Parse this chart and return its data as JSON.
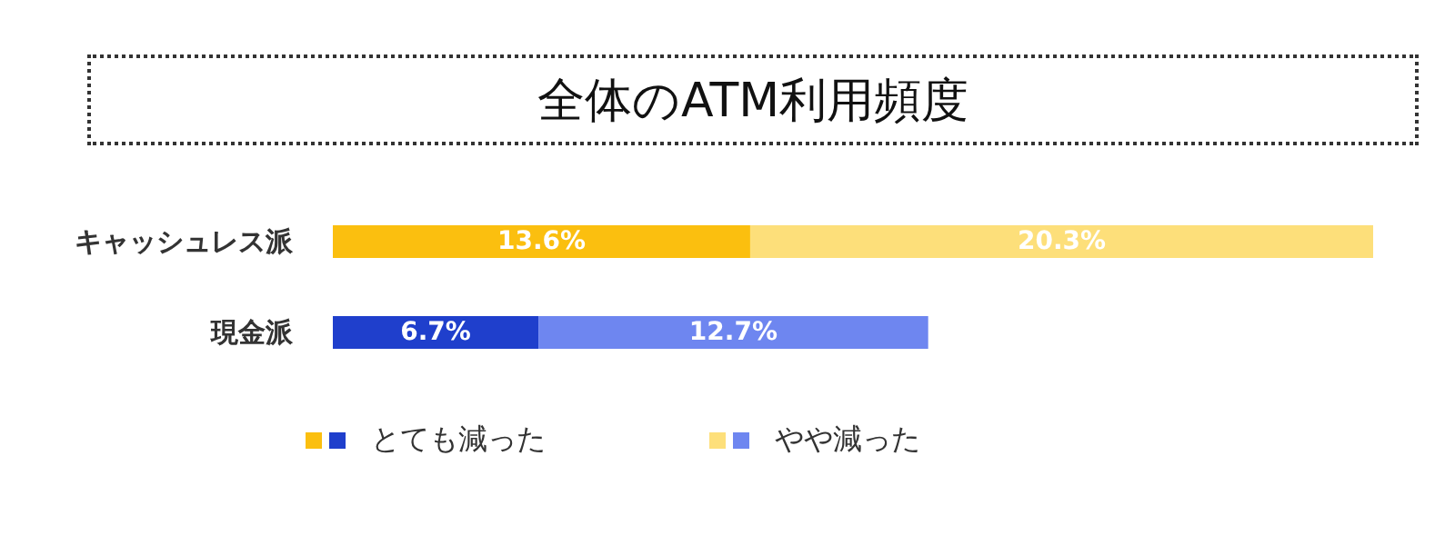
{
  "chart_data": {
    "type": "bar",
    "title": "全体のATM利用頻度",
    "orientation": "horizontal",
    "stacked": true,
    "categories": [
      "キャッシュレス派",
      "現金派"
    ],
    "series": [
      {
        "name": "とても減った",
        "colors": [
          "#fbbf0f",
          "#1f3fcc"
        ],
        "values": [
          13.6,
          6.7
        ],
        "value_labels": [
          "13.6%",
          "6.7%"
        ]
      },
      {
        "name": "やや減った",
        "colors": [
          "#fddf7a",
          "#6e86f0"
        ],
        "values": [
          20.3,
          12.7
        ],
        "value_labels": [
          "20.3%",
          "12.7%"
        ]
      }
    ],
    "legend": "bottom"
  }
}
